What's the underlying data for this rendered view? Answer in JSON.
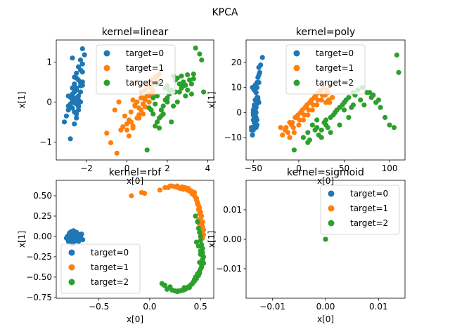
{
  "suptitle": "KPCA",
  "colors": {
    "target=0": "#1f77b4",
    "target=1": "#ff7f0e",
    "target=2": "#2ca02c"
  },
  "chart_data": [
    {
      "type": "scatter",
      "title": "kernel=linear",
      "xlabel": "x[0]",
      "ylabel": "x[1]",
      "xlim": [
        -3.5,
        4.3
      ],
      "ylim": [
        -1.45,
        1.55
      ],
      "xticks": [
        -2,
        0,
        2,
        4
      ],
      "xtick_labels": [
        "−2",
        "0",
        "2",
        "4"
      ],
      "yticks": [
        -1,
        0,
        1
      ],
      "ytick_labels": [
        "−1",
        "0",
        "1"
      ],
      "legend_loc": "upper center",
      "grid": false,
      "series": [
        {
          "name": "target=0",
          "x": [
            -2.2,
            -2.1,
            -2.3,
            -2.2,
            -2.4,
            -2.3,
            -2.5,
            -2.6,
            -2.4,
            -2.3,
            -2.2,
            -2.5,
            -2.6,
            -2.7,
            -2.8,
            -2.5,
            -2.4,
            -2.3,
            -2.6,
            -2.5,
            -2.4,
            -2.7,
            -2.9,
            -3.0,
            -3.1,
            -2.6,
            -2.8,
            -2.5,
            -2.7,
            -2.4,
            -2.3,
            -2.6,
            -2.2,
            -2.5,
            -2.7,
            -2.9,
            -2.4,
            -2.6,
            -2.5,
            -2.8,
            -2.6,
            -2.4,
            -2.7,
            -2.5,
            -2.3,
            -2.2,
            -2.9,
            -2.7
          ],
          "y": [
            1.33,
            1.18,
            1.05,
            0.95,
            0.88,
            0.8,
            0.72,
            0.62,
            0.55,
            0.48,
            0.42,
            0.35,
            0.25,
            0.18,
            0.12,
            0.1,
            0.05,
            0.0,
            -0.02,
            -0.05,
            -0.1,
            -0.15,
            -0.2,
            -0.35,
            -0.5,
            -0.55,
            -0.92,
            0.3,
            0.2,
            0.15,
            0.4,
            0.45,
            0.5,
            0.6,
            0.35,
            -0.1,
            -0.2,
            -0.25,
            -0.3,
            -0.05,
            0.08,
            -0.12,
            0.02,
            -0.4,
            0.25,
            0.75,
            0.15,
            1.1
          ]
        },
        {
          "name": "target=1",
          "x": [
            -1.0,
            -0.8,
            -0.5,
            -0.3,
            -0.1,
            0.1,
            0.3,
            0.5,
            0.7,
            0.9,
            1.1,
            1.3,
            -0.6,
            -0.4,
            0.0,
            0.2,
            0.4,
            0.6,
            0.8,
            1.0,
            1.2,
            1.4,
            -0.2,
            0.1,
            0.3,
            0.5,
            0.7,
            0.9,
            1.1,
            1.3,
            1.5,
            0.0,
            0.2,
            0.4,
            0.6,
            0.8,
            1.0,
            1.2,
            1.4,
            1.6,
            0.5,
            0.7,
            0.9,
            1.1,
            1.3,
            1.5,
            0.3,
            0.6,
            0.8,
            1.0
          ],
          "y": [
            -0.78,
            -1.02,
            -1.28,
            -0.7,
            -0.35,
            -0.85,
            -0.65,
            -0.4,
            -0.2,
            0.05,
            0.2,
            0.45,
            -0.2,
            0.0,
            -0.55,
            -0.25,
            -0.1,
            -0.32,
            0.1,
            0.15,
            0.35,
            0.6,
            -0.62,
            -0.45,
            0.05,
            0.0,
            0.25,
            0.3,
            0.15,
            0.28,
            0.5,
            -0.7,
            -0.5,
            -0.08,
            -0.15,
            -0.05,
            0.38,
            0.55,
            0.62,
            0.7,
            0.5,
            0.1,
            -0.12,
            0.0,
            0.2,
            0.65,
            -0.6,
            -0.4,
            -0.3,
            0.45
          ]
        },
        {
          "name": "target=2",
          "x": [
            1.0,
            1.2,
            1.4,
            1.6,
            1.8,
            2.0,
            2.2,
            2.4,
            2.6,
            2.8,
            3.0,
            3.2,
            3.4,
            3.6,
            3.8,
            1.3,
            1.5,
            1.7,
            1.9,
            2.1,
            2.3,
            2.5,
            2.7,
            2.9,
            3.1,
            3.3,
            1.1,
            1.4,
            1.6,
            1.8,
            2.0,
            2.2,
            2.4,
            2.6,
            2.8,
            3.0,
            3.2,
            1.5,
            1.7,
            2.0,
            2.3,
            3.7,
            1.3,
            1.9,
            2.1,
            2.5,
            2.9,
            3.3,
            1.5,
            2.7
          ],
          "y": [
            -1.2,
            -0.2,
            -0.05,
            -0.65,
            -0.1,
            0.1,
            0.3,
            0.55,
            0.25,
            0.4,
            0.68,
            0.45,
            1.35,
            1.2,
            0.25,
            -0.3,
            -0.5,
            -0.2,
            0.05,
            0.2,
            -0.1,
            0.6,
            0.35,
            0.15,
            0.55,
            0.7,
            -0.15,
            -0.6,
            -0.4,
            -0.3,
            0.0,
            -0.5,
            0.25,
            0.45,
            0.5,
            0.3,
            0.2,
            0.15,
            -0.35,
            0.4,
            0.65,
            1.05,
            0.1,
            0.35,
            0.3,
            0.0,
            0.42,
            0.58,
            0.45,
            0.65
          ]
        }
      ]
    },
    {
      "type": "scatter",
      "title": "kernel=poly",
      "xlabel": "x[0]",
      "ylabel": "x[1]",
      "xlim": [
        -58,
        117
      ],
      "ylim": [
        -19,
        29
      ],
      "xticks": [
        -50,
        0,
        50,
        100
      ],
      "xtick_labels": [
        "−50",
        "0",
        "50",
        "100"
      ],
      "yticks": [
        -10,
        0,
        10,
        20
      ],
      "ytick_labels": [
        "−10",
        "0",
        "10",
        "20"
      ],
      "legend_loc": "upper center",
      "grid": false,
      "series": [
        {
          "name": "target=0",
          "x": [
            -40,
            -42,
            -44,
            -43,
            -45,
            -44,
            -46,
            -47,
            -46,
            -45,
            -44,
            -47,
            -48,
            -49,
            -50,
            -48,
            -47,
            -46,
            -49,
            -48,
            -47,
            -50,
            -51,
            -52,
            -52,
            -49,
            -50,
            -48,
            -49,
            -47,
            -46,
            -48,
            -45,
            -47,
            -49,
            -51,
            -46,
            -48,
            -47,
            -50,
            -48,
            -46,
            -49,
            -47,
            -45,
            -44,
            -51,
            -50
          ],
          "y": [
            22,
            19,
            18,
            16,
            14,
            12,
            10,
            8,
            6,
            5,
            4,
            3,
            2,
            1,
            0,
            -1,
            -2,
            -3,
            -4,
            -5,
            -6,
            -7,
            -9,
            -7,
            -6,
            -2,
            -1,
            1,
            2,
            3,
            4,
            5,
            6,
            8,
            9,
            10,
            12,
            11,
            0,
            -3,
            -4,
            -5,
            3,
            2,
            12,
            15,
            -6,
            1
          ]
        },
        {
          "name": "target=1",
          "x": [
            -20,
            -10,
            -5,
            0,
            5,
            10,
            15,
            20,
            25,
            30,
            -15,
            -8,
            -2,
            3,
            8,
            13,
            18,
            23,
            28,
            33,
            -18,
            -12,
            -6,
            1,
            6,
            11,
            16,
            21,
            26,
            31,
            -10,
            -4,
            2,
            7,
            12,
            17,
            22,
            27,
            32,
            37,
            -14,
            -7,
            -1,
            4,
            9,
            14,
            19,
            24,
            29,
            34
          ],
          "y": [
            -6,
            -10,
            -8,
            -5,
            -3,
            -1,
            1,
            3,
            5,
            4,
            -7,
            -5,
            -2,
            0,
            2,
            4,
            6,
            8,
            7,
            5,
            -9,
            -8,
            -6,
            -3,
            -1,
            1,
            3,
            5,
            7,
            9,
            -4,
            -2,
            0,
            2,
            4,
            6,
            8,
            10,
            8,
            6,
            -6,
            -4,
            -1,
            1,
            3,
            5,
            7,
            9,
            7,
            4
          ]
        },
        {
          "name": "target=2",
          "x": [
            -5,
            5,
            10,
            15,
            20,
            25,
            30,
            35,
            40,
            45,
            50,
            55,
            60,
            65,
            70,
            75,
            80,
            85,
            90,
            95,
            100,
            105,
            108,
            110,
            12,
            18,
            22,
            28,
            32,
            38,
            42,
            48,
            52,
            58,
            62,
            68,
            72,
            78,
            82,
            88,
            10,
            20,
            30,
            40,
            50,
            60,
            45,
            55,
            35,
            25
          ],
          "y": [
            -15,
            -10,
            -8,
            -5,
            -3,
            -7,
            -5,
            -2,
            0,
            2,
            4,
            6,
            8,
            9,
            10,
            8,
            6,
            4,
            2,
            -2,
            -5,
            -6,
            23,
            16,
            -11,
            -7,
            -9,
            -4,
            -6,
            -1,
            1,
            3,
            5,
            2,
            7,
            5,
            3,
            8,
            7,
            5,
            -12,
            -6,
            -3,
            0,
            1,
            3,
            -5,
            -2,
            -8,
            -10
          ]
        }
      ]
    },
    {
      "type": "scatter",
      "title": "kernel=rbf",
      "xlabel": "x[0]",
      "ylabel": "x[1]",
      "xlim": [
        -0.92,
        0.63
      ],
      "ylim": [
        -0.76,
        0.69
      ],
      "xticks": [
        -0.5,
        0.0,
        0.5
      ],
      "xtick_labels": [
        "−0.5",
        "0.0",
        "0.5"
      ],
      "yticks": [
        -0.75,
        -0.5,
        -0.25,
        0.0,
        0.25,
        0.5
      ],
      "ytick_labels": [
        "−0.75",
        "−0.50",
        "−0.25",
        "0.00",
        "0.25",
        "0.50"
      ],
      "legend_loc": "lower left",
      "grid": false,
      "series": [
        {
          "name": "target=0",
          "x": [
            -0.82,
            -0.8,
            -0.79,
            -0.78,
            -0.77,
            -0.76,
            -0.75,
            -0.74,
            -0.73,
            -0.72,
            -0.71,
            -0.7,
            -0.69,
            -0.68,
            -0.67,
            -0.66,
            -0.81,
            -0.8,
            -0.78,
            -0.77,
            -0.76,
            -0.75,
            -0.74,
            -0.73,
            -0.72,
            -0.71,
            -0.79,
            -0.78,
            -0.77,
            -0.76,
            -0.75,
            -0.74,
            -0.73,
            -0.72,
            -0.8,
            -0.79,
            -0.78,
            -0.77,
            -0.76,
            -0.75,
            -0.74,
            -0.73,
            -0.72,
            -0.71,
            -0.7,
            -0.69,
            -0.76,
            -0.75
          ],
          "y": [
            -0.02,
            0.01,
            0.03,
            0.05,
            -0.04,
            0.02,
            -0.06,
            0.0,
            0.04,
            -0.03,
            0.01,
            -0.05,
            0.02,
            -0.01,
            0.03,
            -0.04,
            0.0,
            -0.06,
            0.05,
            -0.02,
            0.04,
            -0.07,
            0.06,
            0.02,
            -0.05,
            0.03,
            -0.01,
            0.02,
            -0.03,
            0.01,
            0.0,
            -0.02,
            0.03,
            0.05,
            -0.04,
            0.04,
            -0.05,
            0.06,
            -0.08,
            0.03,
            -0.03,
            0.0,
            0.02,
            -0.04,
            -0.06,
            -0.02,
            -0.09,
            0.07
          ]
        },
        {
          "name": "target=1",
          "x": [
            -0.18,
            -0.08,
            -0.05,
            0.1,
            0.15,
            0.2,
            0.25,
            0.27,
            0.3,
            0.32,
            0.33,
            0.35,
            0.37,
            0.38,
            0.4,
            0.41,
            0.42,
            0.44,
            0.45,
            0.46,
            0.47,
            0.48,
            0.49,
            0.5,
            0.51,
            0.52,
            0.52,
            0.53,
            0.53,
            0.52,
            0.51,
            0.5,
            0.5,
            0.49,
            0.48,
            0.28,
            0.3,
            0.34,
            0.36,
            0.4,
            0.43,
            0.46,
            0.47,
            0.48,
            0.5,
            0.51,
            0.49,
            0.22,
            0.18,
            0.44
          ],
          "y": [
            0.5,
            0.54,
            0.53,
            0.57,
            0.6,
            0.62,
            0.61,
            0.62,
            0.6,
            0.61,
            0.58,
            0.6,
            0.57,
            0.59,
            0.55,
            0.56,
            0.52,
            0.5,
            0.48,
            0.45,
            0.42,
            0.38,
            0.35,
            0.3,
            0.25,
            0.18,
            0.12,
            0.08,
            0.02,
            -0.02,
            0.0,
            0.05,
            0.1,
            0.15,
            0.2,
            0.6,
            0.59,
            0.6,
            0.58,
            0.56,
            0.52,
            0.47,
            0.4,
            0.33,
            0.22,
            0.15,
            0.28,
            0.62,
            0.6,
            0.54
          ]
        },
        {
          "name": "target=2",
          "x": [
            0.45,
            0.47,
            0.48,
            0.49,
            0.5,
            0.5,
            0.51,
            0.52,
            0.52,
            0.53,
            0.52,
            0.51,
            0.5,
            0.49,
            0.48,
            0.46,
            0.44,
            0.42,
            0.4,
            0.38,
            0.35,
            0.32,
            0.3,
            0.27,
            0.25,
            0.22,
            0.2,
            0.17,
            0.15,
            0.12,
            0.46,
            0.48,
            0.5,
            0.52,
            0.53,
            0.51,
            0.49,
            0.47,
            0.45,
            0.43,
            0.41,
            0.39,
            0.36,
            0.33,
            0.5,
            0.49,
            0.44,
            0.34,
            0.28,
            0.14
          ],
          "y": [
            0.25,
            0.18,
            0.1,
            0.05,
            0.0,
            -0.05,
            -0.1,
            -0.15,
            -0.2,
            -0.25,
            -0.3,
            -0.35,
            -0.4,
            -0.45,
            -0.48,
            -0.52,
            -0.55,
            -0.58,
            -0.6,
            -0.62,
            -0.65,
            -0.66,
            -0.67,
            -0.68,
            -0.67,
            -0.66,
            -0.62,
            -0.65,
            -0.6,
            -0.58,
            -0.07,
            -0.12,
            -0.22,
            -0.28,
            -0.33,
            -0.38,
            -0.43,
            -0.46,
            -0.5,
            -0.56,
            -0.59,
            -0.63,
            -0.64,
            -0.66,
            -0.18,
            -0.32,
            -0.53,
            -0.63,
            -0.67,
            -0.6
          ]
        }
      ]
    },
    {
      "type": "scatter",
      "title": "kernel=sigmoid",
      "xlabel": "x[0]",
      "ylabel": "x[1]",
      "xlim": [
        -0.015,
        0.015
      ],
      "ylim": [
        -0.02,
        0.02
      ],
      "xticks": [
        -0.01,
        0.0,
        0.01
      ],
      "xtick_labels": [
        "−0.01",
        "0.00",
        "0.01"
      ],
      "yticks": [
        -0.01,
        0.0,
        0.01
      ],
      "ytick_labels": [
        "−0.01",
        "0.00",
        "0.01"
      ],
      "legend_loc": "upper right",
      "grid": false,
      "series": [
        {
          "name": "target=0",
          "x": [
            0.0
          ],
          "y": [
            0.0
          ]
        },
        {
          "name": "target=1",
          "x": [
            0.0
          ],
          "y": [
            0.0
          ]
        },
        {
          "name": "target=2",
          "x": [
            0.0
          ],
          "y": [
            0.0
          ]
        }
      ]
    }
  ]
}
